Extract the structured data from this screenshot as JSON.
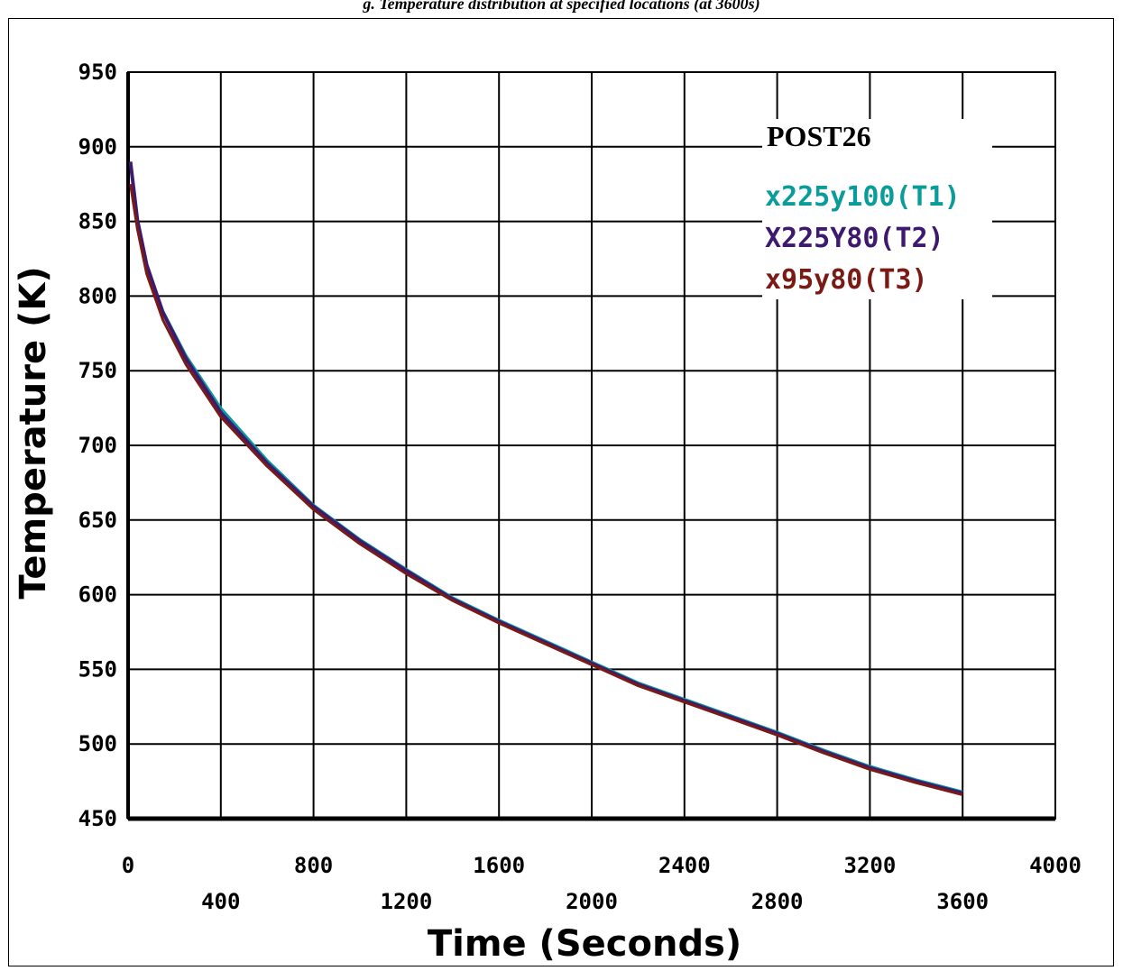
{
  "caption": "g. Temperature distribution at specified locations (at 3600s)",
  "chart_data": {
    "type": "line",
    "xlabel": "Time (Seconds)",
    "ylabel": "Temperature (K)",
    "xlim": [
      0,
      4000
    ],
    "ylim": [
      450,
      950
    ],
    "x_ticks_row1": [
      "0",
      "800",
      "1600",
      "2400",
      "3200",
      "4000"
    ],
    "x_ticks_row2": [
      "400",
      "1200",
      "2000",
      "2800",
      "3600"
    ],
    "y_ticks": [
      "950",
      "900",
      "850",
      "800",
      "750",
      "700",
      "650",
      "600",
      "550",
      "500",
      "450"
    ],
    "grid": true,
    "legend": {
      "title": "POST26",
      "placement": "top-right",
      "entries": [
        {
          "label": "x225y100(T1)",
          "color": "#0a9b9b"
        },
        {
          "label": "X225Y80(T2)",
          "color": "#3d1a6e"
        },
        {
          "label": "x95y80(T3)",
          "color": "#7a1a14"
        }
      ]
    },
    "series": [
      {
        "name": "x225y100(T1)",
        "color": "#0a9b9b",
        "x": [
          10,
          40,
          80,
          150,
          250,
          400,
          600,
          800,
          1000,
          1200,
          1400,
          1600,
          1800,
          2000,
          2200,
          2400,
          2600,
          2800,
          3000,
          3200,
          3400,
          3600
        ],
        "y": [
          890,
          850,
          820,
          790,
          760,
          725,
          690,
          660,
          637,
          617,
          598,
          583,
          569,
          555,
          541,
          530,
          519,
          508,
          496,
          485,
          476,
          468
        ]
      },
      {
        "name": "X225Y80(T2)",
        "color": "#3d1a6e",
        "x": [
          10,
          40,
          80,
          150,
          250,
          400,
          600,
          800,
          1000,
          1200,
          1400,
          1600,
          1800,
          2000,
          2200,
          2400,
          2600,
          2800,
          3000,
          3200,
          3400,
          3600
        ],
        "y": [
          890,
          851,
          821,
          789,
          758,
          722,
          688,
          659,
          636,
          616,
          597,
          582,
          568,
          554,
          540,
          529,
          518,
          507,
          495,
          484,
          475,
          467
        ]
      },
      {
        "name": "x95y80(T3)",
        "color": "#7a1a14",
        "x": [
          10,
          40,
          80,
          150,
          250,
          400,
          600,
          800,
          1000,
          1200,
          1400,
          1600,
          1800,
          2000,
          2200,
          2400,
          2600,
          2800,
          3000,
          3200,
          3400,
          3600
        ],
        "y": [
          875,
          845,
          815,
          784,
          754,
          719,
          686,
          657,
          634,
          614,
          596,
          581,
          567,
          553,
          539,
          528,
          517,
          506,
          494,
          483,
          474,
          466
        ]
      }
    ]
  }
}
